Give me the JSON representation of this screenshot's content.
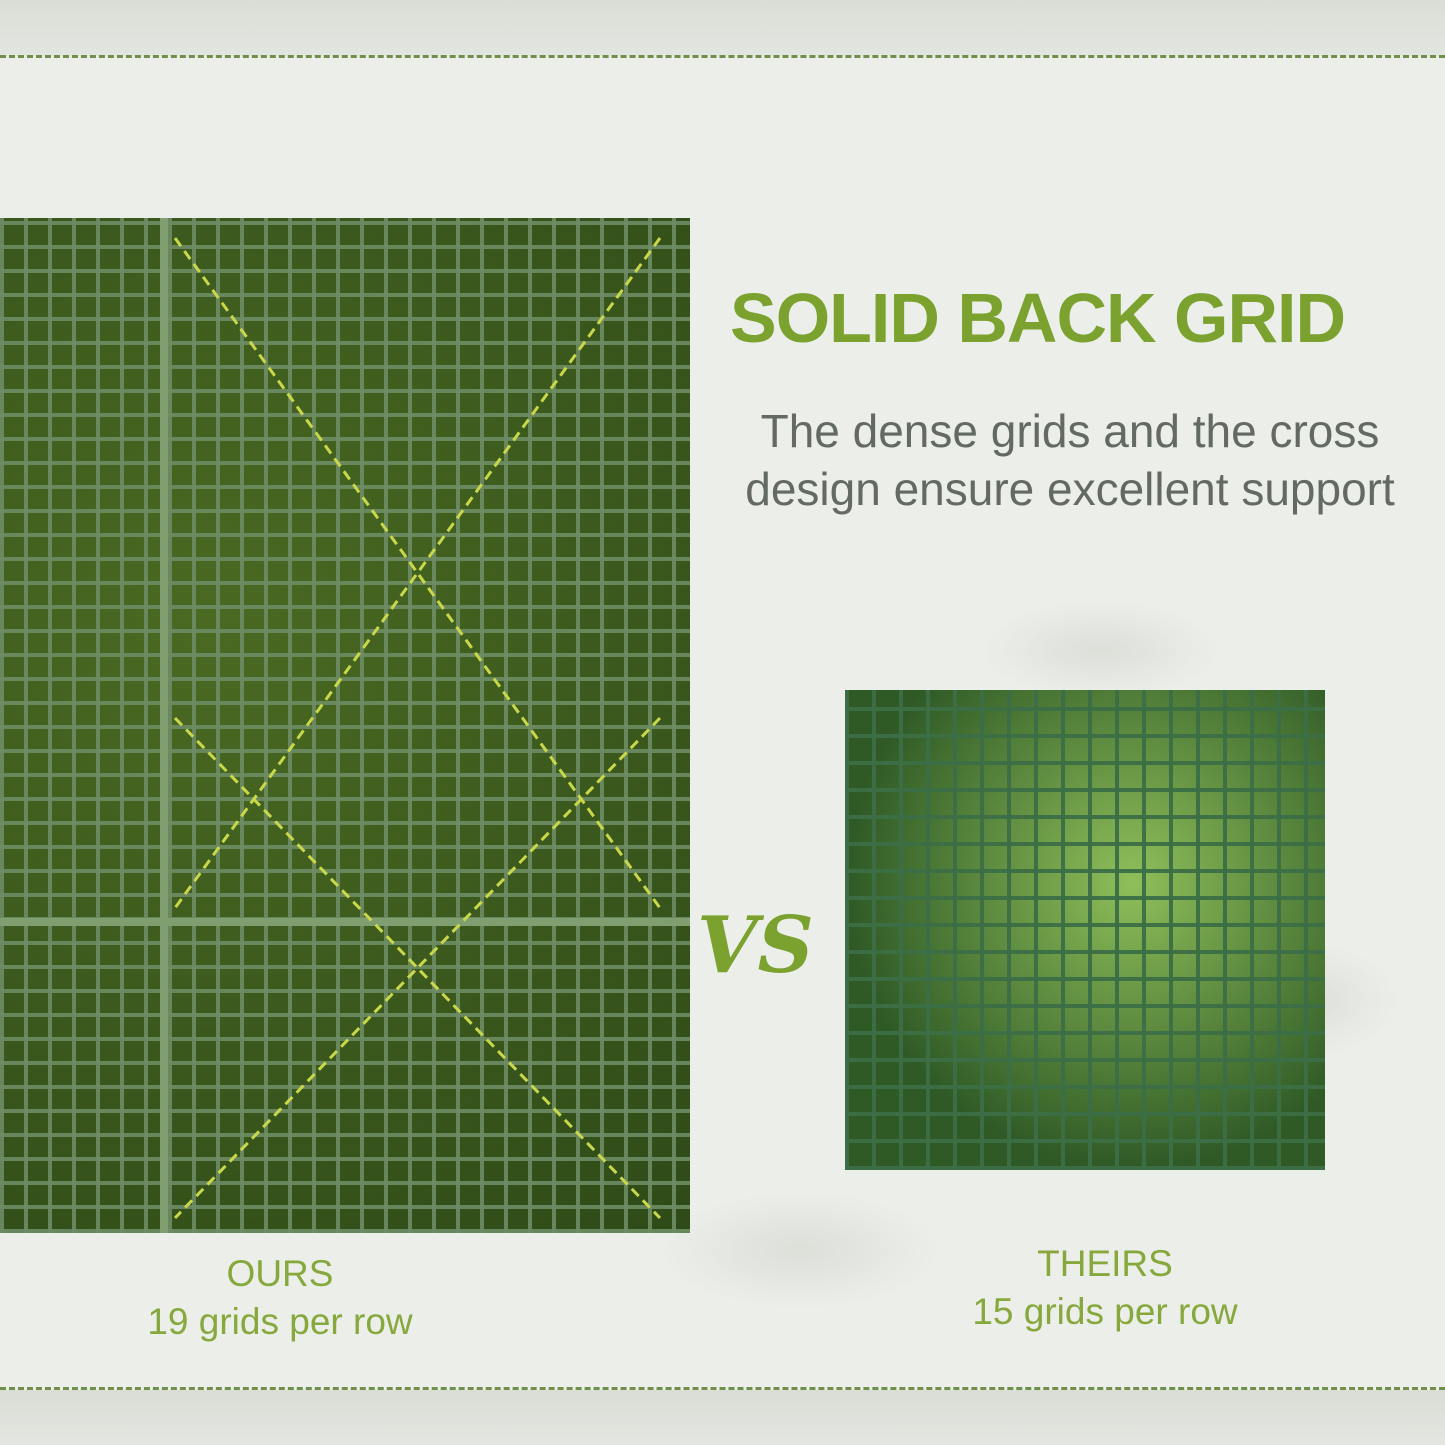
{
  "title": "SOLID BACK GRID",
  "subtitle_lines": [
    "The dense grids and the cross",
    "design ensure excellent support"
  ],
  "vs": "VS",
  "ours": {
    "name": "OURS",
    "detail": "19 grids per row"
  },
  "theirs": {
    "name": "THEIRS",
    "detail": "15 grids per row"
  },
  "colors": {
    "accent": "#7ba22f",
    "text": "#626a63",
    "dash": "#6f8f4a"
  }
}
